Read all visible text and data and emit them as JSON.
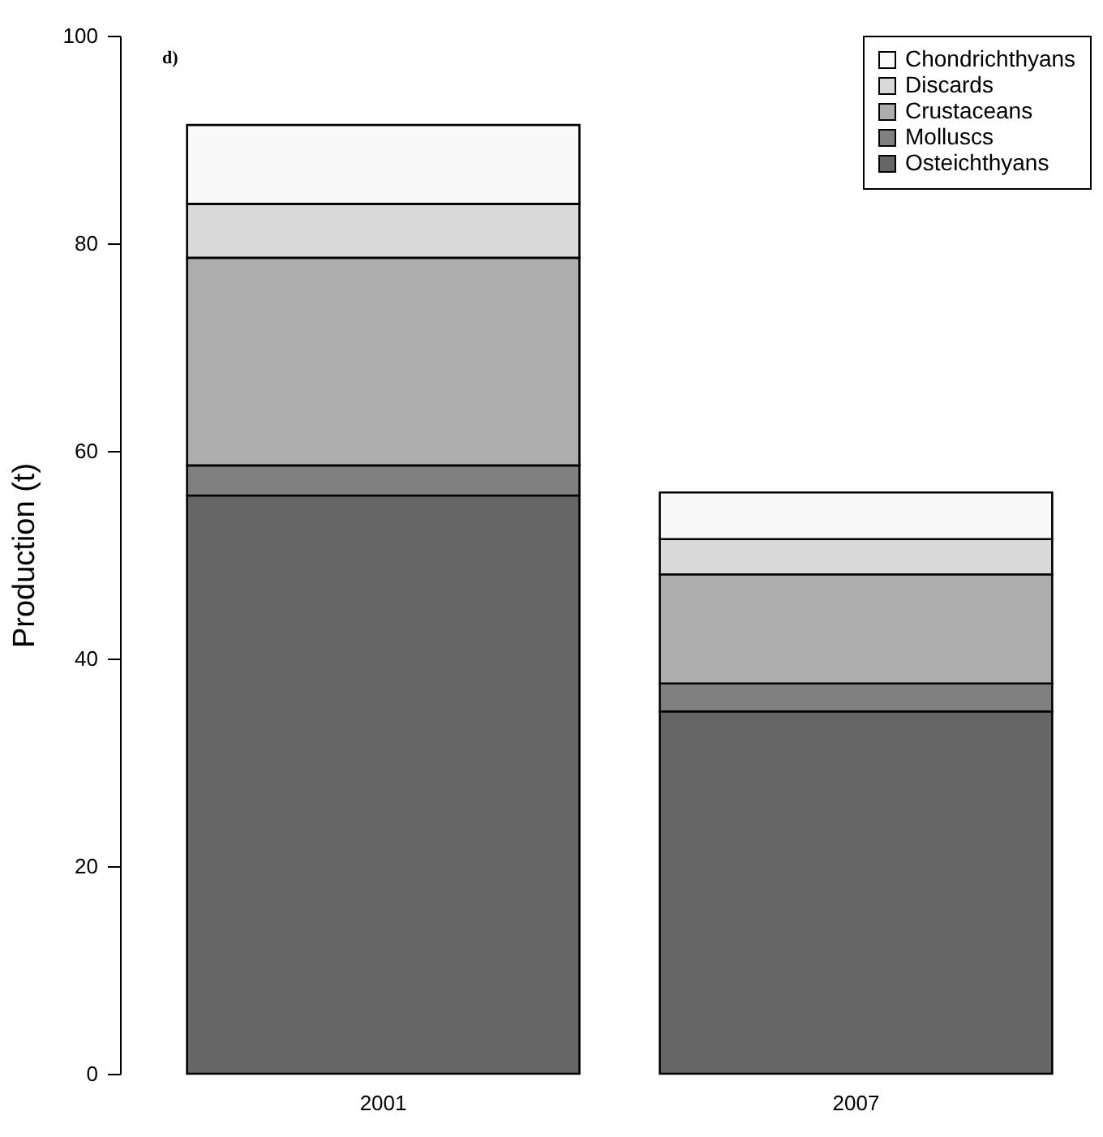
{
  "chart_data": {
    "type": "bar",
    "stacked": true,
    "ylabel": "Production (t)",
    "annotations": [
      "d)"
    ],
    "categories": [
      "2001",
      "2007"
    ],
    "ylim": [
      0,
      100
    ],
    "yticks": [
      0,
      20,
      40,
      60,
      80,
      100
    ],
    "grid": false,
    "legend": "top right",
    "series": [
      {
        "name": "Osteichthyans",
        "color": "#666666",
        "values": [
          55.7,
          34.9
        ]
      },
      {
        "name": "Molluscs",
        "color": "#808080",
        "values": [
          2.9,
          2.7
        ]
      },
      {
        "name": "Crustaceans",
        "color": "#adadad",
        "values": [
          20.0,
          10.5
        ]
      },
      {
        "name": "Discards",
        "color": "#d9d9d9",
        "values": [
          5.2,
          3.4
        ]
      },
      {
        "name": "Chondrichthyans",
        "color": "#f9f9f9",
        "values": [
          7.6,
          4.5
        ]
      }
    ]
  }
}
